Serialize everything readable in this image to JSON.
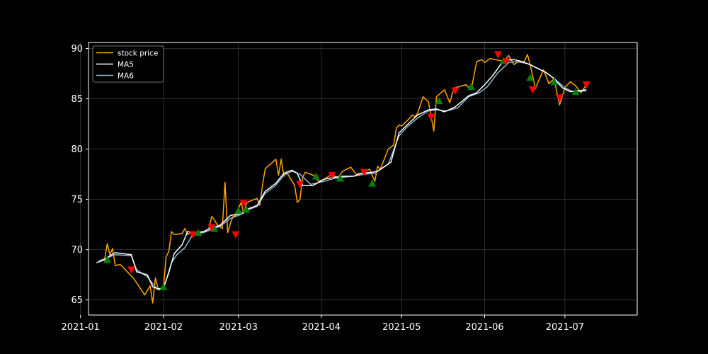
{
  "chart_data": {
    "type": "line",
    "title": "",
    "xlabel": "",
    "ylabel": "",
    "x_axis": {
      "type": "date",
      "range": [
        "2021-01-04",
        "2021-07-28"
      ],
      "ticks": [
        "2021-01-01",
        "2021-02-01",
        "2021-03-01",
        "2021-04-01",
        "2021-05-01",
        "2021-06-01",
        "2021-07-01"
      ],
      "tick_labels": [
        "2021-01",
        "2021-02",
        "2021-03",
        "2021-04",
        "2021-05",
        "2021-06",
        "2021-07"
      ]
    },
    "y_axis": {
      "range": [
        63.5,
        90.6
      ],
      "ticks": [
        65,
        70,
        75,
        80,
        85,
        90
      ],
      "tick_labels": [
        "65",
        "70",
        "75",
        "80",
        "85",
        "90"
      ]
    },
    "grid": true,
    "legend": {
      "position": "top-left",
      "entries": [
        "stock price",
        "MA5",
        "MA6"
      ]
    },
    "colors": {
      "background": "#000000",
      "text": "#ffffff",
      "grid": "#3a3a3a",
      "stock": "#ffa500",
      "ma5": "#ffffff",
      "ma6": "#8fb8d0",
      "buy": "#008000",
      "sell": "#ff0000"
    },
    "series": [
      {
        "name": "stock price",
        "x": [
          "2021-01-08",
          "2021-01-09",
          "2021-01-10",
          "2021-01-11",
          "2021-01-12",
          "2021-01-13",
          "2021-01-14",
          "2021-01-15",
          "2021-01-16",
          "2021-01-21",
          "2021-01-22",
          "2021-01-23",
          "2021-01-25",
          "2021-01-27",
          "2021-01-28",
          "2021-01-29",
          "2021-01-30",
          "2021-02-01",
          "2021-02-02",
          "2021-02-03",
          "2021-02-04",
          "2021-02-05",
          "2021-02-08",
          "2021-02-09",
          "2021-02-10",
          "2021-02-11",
          "2021-02-12",
          "2021-02-16",
          "2021-02-18",
          "2021-02-19",
          "2021-02-20",
          "2021-02-21",
          "2021-02-23",
          "2021-02-24",
          "2021-02-25",
          "2021-02-26",
          "2021-02-27",
          "2021-02-28",
          "2021-03-01",
          "2021-03-02",
          "2021-03-03",
          "2021-03-04",
          "2021-03-05",
          "2021-03-08",
          "2021-03-09",
          "2021-03-10",
          "2021-03-11",
          "2021-03-12",
          "2021-03-13",
          "2021-03-15",
          "2021-03-16",
          "2021-03-17",
          "2021-03-18",
          "2021-03-19",
          "2021-03-22",
          "2021-03-23",
          "2021-03-24",
          "2021-03-25",
          "2021-03-26",
          "2021-03-29",
          "2021-03-31",
          "2021-04-02",
          "2021-04-05",
          "2021-04-07",
          "2021-04-09",
          "2021-04-12",
          "2021-04-14",
          "2021-04-16",
          "2021-04-19",
          "2021-04-20",
          "2021-04-21",
          "2021-04-22",
          "2021-04-23",
          "2021-04-26",
          "2021-04-28",
          "2021-04-29",
          "2021-04-30",
          "2021-05-01",
          "2021-05-03",
          "2021-05-05",
          "2021-05-06",
          "2021-05-07",
          "2021-05-09",
          "2021-05-11",
          "2021-05-13",
          "2021-05-14",
          "2021-05-17",
          "2021-05-19",
          "2021-05-20",
          "2021-05-21",
          "2021-05-25",
          "2021-05-27",
          "2021-05-29",
          "2021-05-31",
          "2021-06-01",
          "2021-06-03",
          "2021-06-07",
          "2021-06-08",
          "2021-06-09",
          "2021-06-10",
          "2021-06-12",
          "2021-06-14",
          "2021-06-15",
          "2021-06-16",
          "2021-06-17",
          "2021-06-18",
          "2021-06-20",
          "2021-06-21",
          "2021-06-23",
          "2021-06-25",
          "2021-06-27",
          "2021-06-28",
          "2021-06-29",
          "2021-07-01",
          "2021-07-03",
          "2021-07-05",
          "2021-07-07",
          "2021-07-09"
        ],
        "y": [
          68.9,
          68.9,
          69.0,
          70.6,
          69.5,
          70.1,
          68.4,
          68.5,
          68.5,
          67.1,
          66.7,
          66.3,
          65.5,
          66.4,
          64.7,
          67.2,
          66.1,
          66.2,
          69.3,
          69.8,
          71.8,
          71.5,
          71.6,
          72.1,
          71.5,
          71.7,
          71.7,
          71.7,
          72.1,
          73.3,
          73.0,
          72.5,
          72.1,
          76.7,
          71.7,
          72.6,
          73.3,
          73.4,
          74.1,
          74.7,
          73.6,
          74.6,
          74.8,
          75.1,
          74.4,
          76.4,
          78.0,
          78.3,
          78.5,
          79.0,
          77.4,
          79.0,
          77.3,
          77.7,
          76.4,
          74.7,
          75.0,
          77.2,
          77.7,
          77.4,
          76.8,
          77.0,
          77.5,
          77.1,
          77.8,
          78.2,
          77.5,
          77.6,
          78.0,
          77.4,
          76.8,
          78.3,
          78.0,
          80.0,
          80.4,
          82.1,
          82.4,
          82.3,
          82.8,
          83.4,
          83.2,
          83.6,
          85.2,
          84.7,
          81.8,
          85.2,
          85.9,
          84.6,
          85.6,
          86.1,
          86.4,
          85.9,
          88.7,
          88.9,
          88.6,
          89.0,
          88.8,
          88.7,
          89.0,
          89.3,
          88.4,
          88.8,
          88.6,
          88.8,
          89.4,
          88.4,
          86.0,
          86.7,
          87.9,
          86.5,
          87.0,
          85.6,
          84.4,
          86.1,
          86.7,
          86.3,
          85.6,
          86.4
        ]
      },
      {
        "name": "MA5",
        "x": [
          "2021-01-07",
          "2021-01-10",
          "2021-01-12",
          "2021-01-14",
          "2021-01-20",
          "2021-01-22",
          "2021-01-26",
          "2021-01-28",
          "2021-01-30",
          "2021-02-01",
          "2021-02-03",
          "2021-02-05",
          "2021-02-08",
          "2021-02-10",
          "2021-02-13",
          "2021-02-16",
          "2021-02-19",
          "2021-02-22",
          "2021-02-26",
          "2021-03-02",
          "2021-03-05",
          "2021-03-08",
          "2021-03-11",
          "2021-03-15",
          "2021-03-18",
          "2021-03-21",
          "2021-03-23",
          "2021-03-25",
          "2021-03-29",
          "2021-04-02",
          "2021-04-06",
          "2021-04-09",
          "2021-04-13",
          "2021-04-16",
          "2021-04-20",
          "2021-04-22",
          "2021-04-27",
          "2021-04-30",
          "2021-05-03",
          "2021-05-07",
          "2021-05-11",
          "2021-05-14",
          "2021-05-17",
          "2021-05-21",
          "2021-05-26",
          "2021-05-29",
          "2021-06-01",
          "2021-06-04",
          "2021-06-08",
          "2021-06-12",
          "2021-06-15",
          "2021-06-18",
          "2021-06-21",
          "2021-06-24",
          "2021-06-27",
          "2021-06-30",
          "2021-07-03",
          "2021-07-09"
        ],
        "y": [
          68.7,
          69.0,
          69.4,
          69.7,
          69.5,
          67.8,
          67.5,
          66.3,
          66.1,
          66.2,
          67.7,
          69.6,
          70.5,
          71.8,
          71.7,
          71.8,
          72.2,
          72.4,
          73.4,
          73.6,
          74.1,
          74.4,
          75.8,
          76.6,
          77.6,
          77.9,
          77.6,
          76.4,
          76.4,
          77.0,
          77.2,
          77.3,
          77.3,
          77.6,
          77.7,
          77.8,
          78.7,
          81.6,
          82.4,
          83.4,
          83.9,
          84.0,
          83.7,
          84.2,
          85.3,
          85.6,
          86.4,
          87.3,
          88.8,
          88.9,
          88.7,
          88.4,
          88.0,
          87.6,
          87.0,
          86.1,
          85.7,
          85.9
        ]
      },
      {
        "name": "MA6",
        "x": [
          "2021-01-08",
          "2021-01-11",
          "2021-01-14",
          "2021-01-20",
          "2021-01-22",
          "2021-01-26",
          "2021-01-28",
          "2021-01-30",
          "2021-02-01",
          "2021-02-04",
          "2021-02-06",
          "2021-02-09",
          "2021-02-12",
          "2021-02-16",
          "2021-02-19",
          "2021-02-22",
          "2021-02-26",
          "2021-03-02",
          "2021-03-05",
          "2021-03-08",
          "2021-03-11",
          "2021-03-15",
          "2021-03-18",
          "2021-03-21",
          "2021-03-24",
          "2021-03-28",
          "2021-04-02",
          "2021-04-06",
          "2021-04-09",
          "2021-04-13",
          "2021-04-17",
          "2021-04-21",
          "2021-04-26",
          "2021-04-30",
          "2021-05-03",
          "2021-05-07",
          "2021-05-11",
          "2021-05-14",
          "2021-05-18",
          "2021-05-22",
          "2021-05-26",
          "2021-05-30",
          "2021-06-02",
          "2021-06-06",
          "2021-06-10",
          "2021-06-13",
          "2021-06-17",
          "2021-06-21",
          "2021-06-24",
          "2021-06-27",
          "2021-07-01",
          "2021-07-04",
          "2021-07-09"
        ],
        "y": [
          68.9,
          69.2,
          69.5,
          69.4,
          68.0,
          67.3,
          66.6,
          66.0,
          66.1,
          68.7,
          69.5,
          70.2,
          71.5,
          71.7,
          72.0,
          72.3,
          73.1,
          73.5,
          74.0,
          74.3,
          75.6,
          76.4,
          77.4,
          77.8,
          77.5,
          76.5,
          76.8,
          77.1,
          77.2,
          77.3,
          77.5,
          77.6,
          78.5,
          81.3,
          82.2,
          83.1,
          83.8,
          83.9,
          83.8,
          84.1,
          85.2,
          85.6,
          86.2,
          87.6,
          88.6,
          88.7,
          88.5,
          88.0,
          87.6,
          87.0,
          86.1,
          85.7,
          85.8
        ]
      }
    ],
    "buy_markers": {
      "x": [
        "2021-01-11",
        "2021-02-01",
        "2021-02-14",
        "2021-02-20",
        "2021-03-01",
        "2021-03-04",
        "2021-03-30",
        "2021-04-08",
        "2021-04-20",
        "2021-05-15",
        "2021-05-27",
        "2021-06-08",
        "2021-06-18",
        "2021-06-27",
        "2021-07-05"
      ],
      "y": [
        69.0,
        66.3,
        71.7,
        72.1,
        73.9,
        74.0,
        77.3,
        77.1,
        76.6,
        84.8,
        86.2,
        88.8,
        87.1,
        86.7,
        85.7
      ]
    },
    "sell_markers": {
      "x": [
        "2021-01-20",
        "2021-02-12",
        "2021-02-19",
        "2021-02-28",
        "2021-03-03",
        "2021-03-24",
        "2021-04-05",
        "2021-04-17",
        "2021-05-12",
        "2021-05-21",
        "2021-06-06",
        "2021-06-09",
        "2021-06-19",
        "2021-06-29",
        "2021-07-09"
      ],
      "y": [
        68.0,
        71.5,
        72.2,
        71.5,
        74.6,
        76.5,
        77.4,
        77.7,
        83.2,
        85.8,
        89.4,
        88.7,
        85.9,
        85.1,
        86.4
      ]
    }
  }
}
